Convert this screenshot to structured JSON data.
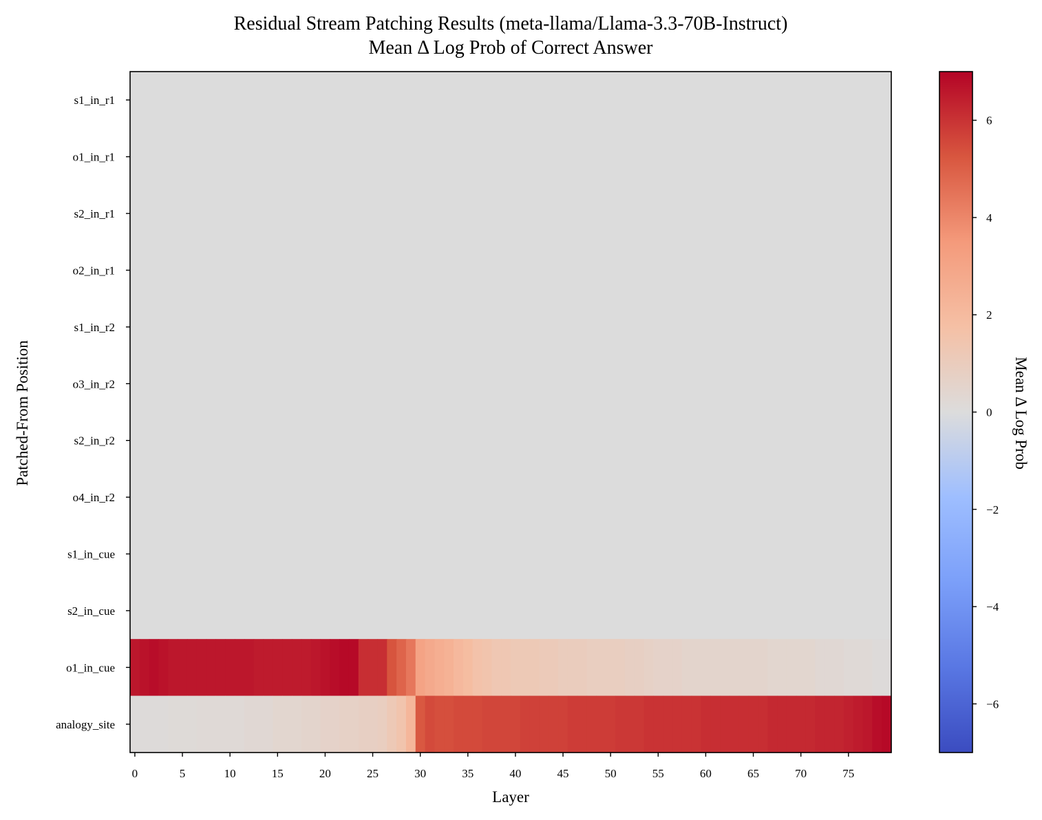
{
  "chart_data": {
    "type": "heatmap",
    "title": "Residual Stream Patching Results (meta-llama/Llama-3.3-70B-Instruct)",
    "subtitle": "Mean Δ Log Prob of Correct Answer",
    "xlabel": "Layer",
    "ylabel": "Patched-From Position",
    "x_ticks": [
      0,
      5,
      10,
      15,
      20,
      25,
      30,
      35,
      40,
      45,
      50,
      55,
      60,
      65,
      70,
      75
    ],
    "x_range": [
      0,
      79
    ],
    "rows": [
      "s1_in_r1",
      "o1_in_r1",
      "s2_in_r1",
      "o2_in_r1",
      "s1_in_r2",
      "o3_in_r2",
      "s2_in_r2",
      "o4_in_r2",
      "s1_in_cue",
      "s2_in_cue",
      "o1_in_cue",
      "analogy_site"
    ],
    "values": {
      "s1_in_r1": [
        0
      ],
      "o1_in_r1": [
        0
      ],
      "s2_in_r1": [
        0
      ],
      "o2_in_r1": [
        0
      ],
      "s1_in_r2": [
        0
      ],
      "o3_in_r2": [
        0
      ],
      "s2_in_r2": [
        0
      ],
      "o4_in_r2": [
        0
      ],
      "s1_in_cue": [
        0
      ],
      "s2_in_cue": [
        0
      ],
      "o1_in_cue": [
        6.6,
        6.7,
        6.8,
        6.7,
        6.6,
        6.6,
        6.6,
        6.6,
        6.6,
        6.6,
        6.6,
        6.6,
        6.6,
        6.5,
        6.5,
        6.5,
        6.5,
        6.5,
        6.5,
        6.6,
        6.7,
        6.8,
        6.9,
        6.9,
        6.1,
        6.1,
        6.1,
        5.3,
        4.9,
        4.4,
        3.1,
        2.8,
        2.6,
        2.4,
        2.1,
        1.9,
        1.6,
        1.5,
        1.3,
        1.3,
        1.2,
        1.2,
        1.2,
        1.1,
        1.1,
        1.0,
        1.0,
        1.0,
        0.9,
        0.9,
        0.9,
        0.9,
        0.8,
        0.8,
        0.7,
        0.6,
        0.6,
        0.6,
        0.5,
        0.5,
        0.5,
        0.5,
        0.5,
        0.5,
        0.5,
        0.5,
        0.5,
        0.4,
        0.4,
        0.4,
        0.4,
        0.4,
        0.3,
        0.3,
        0.3,
        0.2,
        0.2,
        0.2,
        0.1,
        0.1
      ],
      "analogy_site": [
        0.1,
        0.1,
        0.1,
        0.1,
        0.15,
        0.15,
        0.15,
        0.2,
        0.2,
        0.2,
        0.2,
        0.2,
        0.3,
        0.3,
        0.3,
        0.4,
        0.4,
        0.4,
        0.5,
        0.5,
        0.6,
        0.6,
        0.7,
        0.7,
        0.8,
        0.8,
        0.9,
        1.2,
        1.5,
        2.2,
        5.2,
        5.5,
        5.4,
        5.4,
        5.5,
        5.5,
        5.5,
        5.6,
        5.6,
        5.6,
        5.6,
        5.7,
        5.7,
        5.7,
        5.7,
        5.7,
        5.8,
        5.8,
        5.8,
        5.8,
        5.8,
        5.9,
        5.9,
        5.9,
        6.0,
        6.0,
        6.0,
        6.0,
        6.0,
        6.0,
        6.1,
        6.1,
        6.1,
        6.1,
        6.1,
        6.1,
        6.1,
        6.2,
        6.2,
        6.2,
        6.2,
        6.2,
        6.3,
        6.3,
        6.3,
        6.4,
        6.5,
        6.6,
        6.8,
        6.9
      ]
    },
    "colormap": "coolwarm",
    "zero_color": "#dcdcdc",
    "colorbar": {
      "label": "Mean Δ Log Prob",
      "range": [
        -7,
        7
      ],
      "ticks": [
        6,
        4,
        2,
        0,
        -2,
        -4,
        -6
      ],
      "tick_labels": [
        "6",
        "4",
        "2",
        "0",
        "−2",
        "−4",
        "−6"
      ]
    }
  }
}
